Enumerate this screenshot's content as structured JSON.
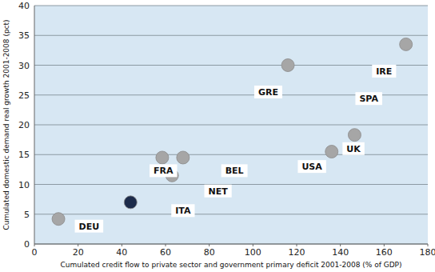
{
  "chart_data": {
    "type": "scatter",
    "x_label": "Cumulated credit flow to private sector and government primary deficit  2001-2008 (% of GDP)",
    "y_label": "Cumulated domestic demand real growth 2001-2008 (pct)",
    "x": [
      11,
      44,
      58.5,
      63,
      68,
      116,
      136,
      146.5,
      170
    ],
    "values": [
      4.2,
      7,
      14.5,
      11.5,
      14.5,
      30,
      15.5,
      18.3,
      33.5
    ],
    "colors": [
      "#a6a6a6",
      "#1c2b4a",
      "#a6a6a6",
      "#a6a6a6",
      "#a6a6a6",
      "#a6a6a6",
      "#a6a6a6",
      "#a6a6a6",
      "#a6a6a6"
    ],
    "xlim": [
      0,
      180
    ],
    "xticks": [
      0,
      20,
      40,
      60,
      80,
      100,
      120,
      140,
      160,
      180
    ],
    "ylim": [
      0,
      40
    ],
    "yticks": [
      0,
      5,
      10,
      15,
      20,
      25,
      30,
      35,
      40
    ],
    "grid": true,
    "annotations": [
      {
        "text": "DEU",
        "x": 25,
        "y": 3
      },
      {
        "text": "ITA",
        "x": 68,
        "y": 5.6
      },
      {
        "text": "FRA",
        "x": 59,
        "y": 12.3
      },
      {
        "text": "BEL",
        "x": 91.5,
        "y": 12.3
      },
      {
        "text": "NET",
        "x": 84,
        "y": 8.9
      },
      {
        "text": "GRE",
        "x": 107,
        "y": 25.5
      },
      {
        "text": "IRE",
        "x": 160,
        "y": 29
      },
      {
        "text": "SPA",
        "x": 153,
        "y": 24.4
      },
      {
        "text": "USA",
        "x": 127,
        "y": 13
      },
      {
        "text": "UK",
        "x": 146,
        "y": 16
      }
    ]
  }
}
